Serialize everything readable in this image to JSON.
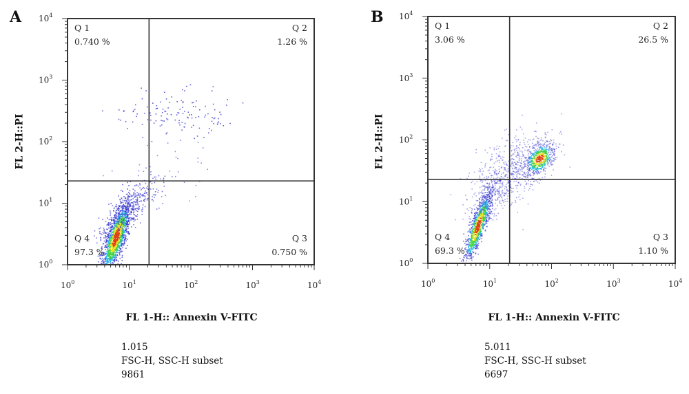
{
  "chart_data": [
    {
      "panel": "A",
      "type": "scatter",
      "xlabel": "FL 1-H:: Annexin V-FITC",
      "ylabel": "FL 2-H::PI",
      "xscale": "log",
      "yscale": "log",
      "xlim": [
        1,
        10000
      ],
      "ylim": [
        1,
        10000
      ],
      "x_ticks": [
        "10",
        "10",
        "10",
        "10",
        "10"
      ],
      "tick_exponents": [
        "0",
        "1",
        "2",
        "3",
        "4"
      ],
      "gate": {
        "x": 21,
        "y": 23
      },
      "quadrants": [
        {
          "name": "Q 1",
          "value": "0.740 %"
        },
        {
          "name": "Q 2",
          "value": "1.26 %"
        },
        {
          "name": "Q 3",
          "value": "0.750 %"
        },
        {
          "name": "Q 4",
          "value": "97.3 %"
        }
      ],
      "stats": [
        "1.015",
        "FSC-H, SSC-H subset",
        "9861"
      ]
    },
    {
      "panel": "B",
      "type": "scatter",
      "xlabel": "FL 1-H:: Annexin V-FITC",
      "ylabel": "FL 2-H::PI",
      "xscale": "log",
      "yscale": "log",
      "xlim": [
        1,
        10000
      ],
      "ylim": [
        1,
        10000
      ],
      "x_ticks": [
        "10",
        "10",
        "10",
        "10",
        "10"
      ],
      "tick_exponents": [
        "0",
        "1",
        "2",
        "3",
        "4"
      ],
      "gate": {
        "x": 21,
        "y": 23
      },
      "quadrants": [
        {
          "name": "Q 1",
          "value": "3.06 %"
        },
        {
          "name": "Q 2",
          "value": "26.5 %"
        },
        {
          "name": "Q 3",
          "value": "1.10 %"
        },
        {
          "name": "Q 4",
          "value": "69.3 %"
        }
      ],
      "stats": [
        "5.011",
        "FSC-H, SSC-H subset",
        "6697"
      ]
    }
  ],
  "density_colors": [
    "#3a3ad0",
    "#27b8e8",
    "#3ed24a",
    "#e8e020",
    "#e04010"
  ]
}
